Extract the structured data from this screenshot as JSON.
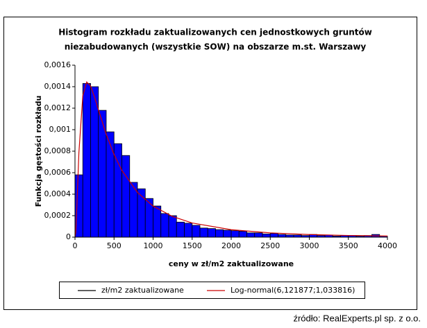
{
  "chart_data": {
    "type": "histogram",
    "title": [
      "Histogram rozkładu zaktualizowanych cen jednostkowych gruntów",
      "niezabudowanych (wszystkie SOW) na obszarze m.st. Warszawy"
    ],
    "x_label": "ceny w zł/m2 zaktualizowane",
    "y_label": "Funkcja gęstości rozkładu",
    "source": "źródło: RealExperts.pl sp. z o.o.",
    "bins": [
      0,
      100,
      200,
      300,
      400,
      500,
      600,
      700,
      800,
      900,
      1000,
      1100,
      1200,
      1300,
      1400,
      1500,
      1600,
      1700,
      1800,
      1900,
      2000,
      2100,
      2200,
      2300,
      2400,
      2500,
      2600,
      2700,
      2800,
      2900,
      3000,
      3100,
      3200,
      3300,
      3400,
      3500,
      3600,
      3700,
      3800,
      3900,
      4000
    ],
    "series": [
      {
        "name": "zł/m2 zaktualizowane",
        "color": "#0000ff",
        "edgecolor": "#000000",
        "values": [
          0.00058,
          0.00143,
          0.0014,
          0.00118,
          0.00098,
          0.00087,
          0.00076,
          0.00051,
          0.00045,
          0.00036,
          0.00029,
          0.00022,
          0.0002,
          0.00014,
          0.00013,
          0.00011,
          8.5e-05,
          8e-05,
          7e-05,
          6.5e-05,
          6e-05,
          5.5e-05,
          4e-05,
          4e-05,
          3e-05,
          3.5e-05,
          2.5e-05,
          2e-05,
          2e-05,
          1.5e-05,
          2.5e-05,
          1.5e-05,
          2e-05,
          1e-05,
          1.5e-05,
          1.5e-05,
          1e-05,
          1.5e-05,
          2.5e-05,
          1e-05
        ]
      },
      {
        "name": "Log-normal(6,121877;1,033816)",
        "color": "#cc0000",
        "x": [
          0,
          10,
          25,
          50,
          100,
          150,
          200,
          250,
          300,
          400,
          500,
          600,
          800,
          1000,
          1250,
          1500,
          2000,
          2500,
          3000,
          3500,
          4000
        ],
        "values": [
          0,
          4.2e-05,
          0.0003,
          0.000786,
          0.001315,
          0.001444,
          0.001405,
          0.001304,
          0.001185,
          0.000957,
          0.000769,
          0.000621,
          0.000416,
          0.000289,
          0.000192,
          0.000132,
          6.93e-05,
          3.98e-05,
          2.44e-05,
          1.58e-05,
          1.06e-05
        ]
      }
    ],
    "xlim": [
      0,
      4000
    ],
    "xticks": [
      0,
      500,
      1000,
      1500,
      2000,
      2500,
      3000,
      3500,
      4000
    ],
    "ylim": [
      0,
      0.0016
    ],
    "yticks": [
      0,
      {
        "value": 0.0002,
        "label": "0,0002"
      },
      {
        "value": 0.0004,
        "label": "0,0004"
      },
      {
        "value": 0.0006,
        "label": "0,0006"
      },
      {
        "value": 0.0008,
        "label": "0,0008"
      },
      {
        "value": 0.001,
        "label": "0,001"
      },
      {
        "value": 0.0012,
        "label": "0,0012"
      },
      {
        "value": 0.0014,
        "label": "0,0014"
      },
      {
        "value": 0.0016,
        "label": "0,0016"
      }
    ],
    "legend": "bottom"
  }
}
